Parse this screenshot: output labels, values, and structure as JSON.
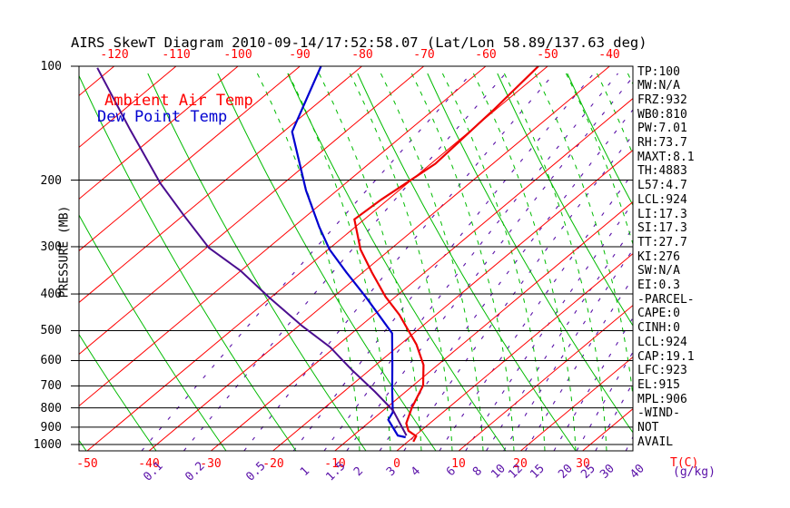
{
  "title": "AIRS SkewT Diagram 2010-09-14/17:52:58.07 (Lat/Lon 58.89/137.63 deg)",
  "legend": {
    "ambient": "Ambient Air Temp",
    "dew": "Dew Point Temp"
  },
  "axes": {
    "pressure_axis_title": "PRESSURE (MB)",
    "temp_axis_title": "T(C)",
    "mixing_axis_title": "(g/kg)",
    "pressure_ticks": [
      100,
      200,
      300,
      400,
      500,
      600,
      700,
      800,
      900,
      1000
    ],
    "top_temp_ticks": [
      -120,
      -110,
      -100,
      -90,
      -80,
      -70,
      -60,
      -50,
      -40
    ],
    "bottom_temp_ticks": [
      -50,
      -40,
      -30,
      -20,
      -10,
      0,
      10,
      20,
      30
    ],
    "mixing_ratio_ticks": [
      "0.1",
      "0.2",
      "0.5",
      "1",
      "1.5",
      "2",
      "3",
      "4",
      "6",
      "8",
      "10",
      "12",
      "15",
      "20",
      "25",
      "30",
      "40"
    ]
  },
  "side_panel": {
    "lines": [
      "TP:100",
      "MW:N/A",
      "FRZ:932",
      "WB0:810",
      "PW:7.01",
      "RH:73.7",
      "MAXT:8.1",
      "TH:4883",
      "L57:4.7",
      "LCL:924",
      "LI:17.3",
      "SI:17.3",
      "TT:27.7",
      "KI:276",
      "SW:N/A",
      "EI:0.3",
      "-PARCEL-",
      "CAPE:0",
      "CINH:0",
      "LCL:924",
      "CAP:19.1",
      "LFC:923",
      "EL:915",
      "MPL:906",
      "-WIND-",
      "NOT",
      "AVAIL"
    ]
  },
  "colors": {
    "isotherm": "#ff0000",
    "dry_adiabat": "#00bb00",
    "moist_adiabat": "#00bb00",
    "mixing_ratio": "#5a11a8",
    "ambient_curve": "#ee0000",
    "dew_curve": "#0000d0",
    "parcel_curve": "#4a0d8f",
    "frame": "#000000"
  },
  "chart_data": {
    "type": "line",
    "projection": "skewT-logP",
    "title": "AIRS SkewT Diagram 2010-09-14/17:52:58.07 (Lat/Lon 58.89/137.63 deg)",
    "xlabel": "T(C)",
    "ylabel": "PRESSURE (MB)",
    "pressure_range_mb": [
      100,
      1040
    ],
    "temp_labels_c_range": [
      -120,
      30
    ],
    "grid_on": true,
    "legend_position": "top-left",
    "series": [
      {
        "name": "Ambient Air Temp",
        "units": [
          "C",
          "mb"
        ],
        "points": [
          [
            -51.5,
            100
          ],
          [
            -50.3,
            130
          ],
          [
            -49.3,
            181
          ],
          [
            -51.1,
            225
          ],
          [
            -51.6,
            254
          ],
          [
            -44.8,
            305
          ],
          [
            -38.5,
            351
          ],
          [
            -31.6,
            407
          ],
          [
            -25.9,
            454
          ],
          [
            -17.4,
            544
          ],
          [
            -12.3,
            616
          ],
          [
            -8.4,
            698
          ],
          [
            -5.9,
            800
          ],
          [
            -3.8,
            879
          ],
          [
            -2.0,
            920
          ],
          [
            0.3,
            951
          ],
          [
            0.9,
            983
          ]
        ]
      },
      {
        "name": "Dew Point Temp",
        "units": [
          "C",
          "mb"
        ],
        "points": [
          [
            -86.6,
            100
          ],
          [
            -78.6,
            149
          ],
          [
            -65.0,
            213
          ],
          [
            -55.8,
            266
          ],
          [
            -49.8,
            305
          ],
          [
            -42.6,
            351
          ],
          [
            -34.8,
            407
          ],
          [
            -23.5,
            508
          ],
          [
            -17.7,
            609
          ],
          [
            -12.5,
            718
          ],
          [
            -8.1,
            822
          ],
          [
            -7.4,
            860
          ],
          [
            -2.8,
            947
          ],
          [
            -1.2,
            957
          ]
        ]
      },
      {
        "name": "Parcel",
        "units": [
          "C",
          "mb"
        ],
        "points": [
          [
            -122.4,
            101
          ],
          [
            -105.2,
            147
          ],
          [
            -89.9,
            204
          ],
          [
            -80.1,
            247
          ],
          [
            -69.6,
            302
          ],
          [
            -60.1,
            347
          ],
          [
            -50.2,
            409
          ],
          [
            -39.3,
            487
          ],
          [
            -30.8,
            553
          ],
          [
            -23.1,
            633
          ],
          [
            -14.9,
            726
          ],
          [
            -8.4,
            813
          ],
          [
            -1.4,
            947
          ]
        ]
      }
    ],
    "grid": {
      "isotherms_c": {
        "min": -120,
        "max": 30,
        "step": 10
      },
      "mixing_ratios_gkg": [
        0.1,
        0.2,
        0.5,
        1,
        1.5,
        2,
        3,
        4,
        6,
        8,
        10,
        12,
        15,
        20,
        25,
        30,
        40
      ],
      "dry_adiabats": {
        "x0_start": 95,
        "x0_end": 941,
        "step": 77,
        "slope_bottom": 0.7,
        "slope_top": 0.45
      },
      "moist_adiabats": {
        "x0_start": 396,
        "x0_end": 813,
        "step": 34,
        "slope_bottom": 0.05,
        "slope_top": 0.5
      }
    }
  }
}
